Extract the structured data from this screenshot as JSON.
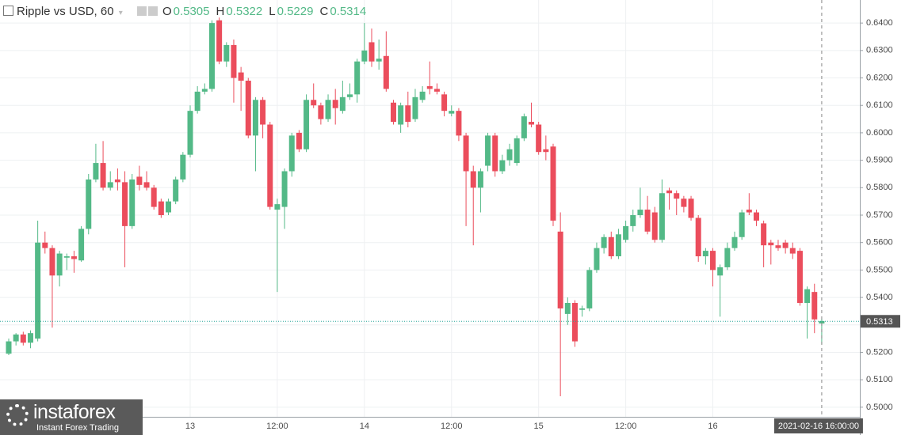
{
  "chart_data": {
    "type": "candlestick",
    "title": "Ripple vs USD, 60",
    "ohlc_labels": [
      "O",
      "H",
      "L",
      "C"
    ],
    "up_color": "#53b987",
    "down_color": "#eb4d5c",
    "grid": true,
    "ylim": [
      0.4965,
      0.6484
    ],
    "yticks": [
      {
        "value": 0.5,
        "label": "0.5000"
      },
      {
        "value": 0.51,
        "label": "0.5100"
      },
      {
        "value": 0.52,
        "label": "0.5200"
      },
      {
        "value": 0.53,
        "label": "0.5300"
      },
      {
        "value": 0.54,
        "label": "0.5400"
      },
      {
        "value": 0.55,
        "label": "0.5500"
      },
      {
        "value": 0.56,
        "label": "0.5600"
      },
      {
        "value": 0.57,
        "label": "0.5700"
      },
      {
        "value": 0.58,
        "label": "0.5800"
      },
      {
        "value": 0.59,
        "label": "0.5900"
      },
      {
        "value": 0.6,
        "label": "0.6000"
      },
      {
        "value": 0.61,
        "label": "0.6100"
      },
      {
        "value": 0.62,
        "label": "0.6200"
      },
      {
        "value": 0.63,
        "label": "0.6300"
      },
      {
        "value": 0.64,
        "label": "0.6400"
      }
    ],
    "last_price": 0.5313,
    "crosshair_label": "2021-02-16 16:00:00",
    "logo": {
      "name": "instaforex",
      "tagline": "Instant Forex Trading"
    },
    "categories": [
      null,
      null,
      null,
      null,
      null,
      null,
      null,
      null,
      null,
      null,
      null,
      null,
      null,
      null,
      null,
      null,
      null,
      null,
      null,
      null,
      null,
      null,
      null,
      null,
      null,
      "13",
      null,
      null,
      null,
      null,
      null,
      null,
      null,
      null,
      null,
      null,
      null,
      "12:00",
      null,
      null,
      null,
      null,
      null,
      null,
      null,
      null,
      null,
      null,
      null,
      "14",
      null,
      null,
      null,
      null,
      null,
      null,
      null,
      null,
      null,
      null,
      null,
      "12:00",
      null,
      null,
      null,
      null,
      null,
      null,
      null,
      null,
      null,
      null,
      null,
      "15",
      null,
      null,
      null,
      null,
      null,
      null,
      null,
      null,
      null,
      null,
      null,
      "12:00",
      null,
      null,
      null,
      null,
      null,
      null,
      null,
      null,
      null,
      null,
      null,
      "16",
      null,
      null,
      null,
      null,
      null,
      null,
      null,
      null,
      null,
      null,
      null,
      null,
      null,
      null,
      null
    ],
    "open": [
      0.5195,
      0.524,
      0.5265,
      0.5235,
      0.525,
      0.56,
      0.558,
      0.548,
      0.5545,
      0.555,
      0.5535,
      0.565,
      0.583,
      0.589,
      0.58,
      0.583,
      0.582,
      0.566,
      0.584,
      0.582,
      0.58,
      0.575,
      0.571,
      0.575,
      0.583,
      0.592,
      0.608,
      0.615,
      0.616,
      0.641,
      0.626,
      0.632,
      0.622,
      0.619,
      0.599,
      0.612,
      0.603,
      0.572,
      0.573,
      0.586,
      0.6,
      0.594,
      0.612,
      0.61,
      0.605,
      0.612,
      0.608,
      0.613,
      0.614,
      0.626,
      0.633,
      0.626,
      0.628,
      0.611,
      0.603,
      0.61,
      0.605,
      0.612,
      0.617,
      0.616,
      0.614,
      0.607,
      0.608,
      0.599,
      0.586,
      0.58,
      0.588,
      0.599,
      0.586,
      0.59,
      0.589,
      0.598,
      0.604,
      0.603,
      0.594,
      0.595,
      0.564,
      0.534,
      0.538,
      0.5355,
      0.536,
      0.55,
      0.558,
      0.562,
      0.555,
      0.561,
      0.566,
      0.57,
      0.572,
      0.571,
      0.561,
      0.579,
      0.578,
      0.576,
      0.576,
      0.569,
      0.555,
      0.557,
      0.548,
      0.551,
      0.558,
      0.562,
      0.572,
      0.571,
      0.567,
      0.56,
      0.559,
      0.56,
      0.558,
      0.557,
      0.538,
      0.542,
      0.5305
    ],
    "high": [
      0.525,
      0.527,
      0.5275,
      0.528,
      0.568,
      0.564,
      0.559,
      0.557,
      0.556,
      0.557,
      0.566,
      0.585,
      0.596,
      0.597,
      0.586,
      0.587,
      0.586,
      0.585,
      0.588,
      0.586,
      0.581,
      0.576,
      0.576,
      0.584,
      0.593,
      0.61,
      0.617,
      0.618,
      0.641,
      0.642,
      0.633,
      0.634,
      0.624,
      0.62,
      0.613,
      0.613,
      0.604,
      0.576,
      0.587,
      0.6,
      0.601,
      0.614,
      0.618,
      0.611,
      0.614,
      0.616,
      0.619,
      0.618,
      0.627,
      0.64,
      0.638,
      0.634,
      0.637,
      0.612,
      0.611,
      0.615,
      0.616,
      0.617,
      0.626,
      0.618,
      0.615,
      0.61,
      0.609,
      0.6,
      0.588,
      0.587,
      0.6,
      0.6,
      0.592,
      0.596,
      0.599,
      0.607,
      0.611,
      0.604,
      0.599,
      0.596,
      0.571,
      0.54,
      0.539,
      0.537,
      0.551,
      0.56,
      0.563,
      0.564,
      0.565,
      0.568,
      0.572,
      0.58,
      0.577,
      0.573,
      0.583,
      0.58,
      0.579,
      0.577,
      0.577,
      0.57,
      0.558,
      0.558,
      0.552,
      0.56,
      0.564,
      0.572,
      0.578,
      0.572,
      0.568,
      0.561,
      0.561,
      0.561,
      0.56,
      0.558,
      0.544,
      0.545,
      0.5322
    ],
    "low": [
      0.519,
      0.5225,
      0.5225,
      0.5215,
      0.524,
      0.556,
      0.529,
      0.544,
      0.55,
      0.549,
      0.553,
      0.563,
      0.582,
      0.579,
      0.579,
      0.579,
      0.551,
      0.565,
      0.579,
      0.579,
      0.572,
      0.569,
      0.57,
      0.574,
      0.582,
      0.591,
      0.607,
      0.614,
      0.615,
      0.625,
      0.624,
      0.611,
      0.608,
      0.598,
      0.586,
      0.598,
      0.572,
      0.542,
      0.565,
      0.584,
      0.593,
      0.593,
      0.609,
      0.603,
      0.604,
      0.603,
      0.607,
      0.612,
      0.611,
      0.625,
      0.624,
      0.623,
      0.615,
      0.603,
      0.6,
      0.602,
      0.604,
      0.611,
      0.614,
      0.614,
      0.606,
      0.606,
      0.597,
      0.566,
      0.559,
      0.571,
      0.586,
      0.584,
      0.585,
      0.588,
      0.588,
      0.597,
      0.602,
      0.592,
      0.59,
      0.566,
      0.504,
      0.53,
      0.522,
      0.533,
      0.535,
      0.549,
      0.556,
      0.554,
      0.554,
      0.56,
      0.564,
      0.569,
      0.563,
      0.56,
      0.56,
      0.572,
      0.57,
      0.571,
      0.568,
      0.553,
      0.552,
      0.544,
      0.533,
      0.55,
      0.557,
      0.561,
      0.57,
      0.566,
      0.551,
      0.552,
      0.557,
      0.556,
      0.554,
      0.537,
      0.525,
      0.527,
      0.5229
    ],
    "close": [
      0.524,
      0.5265,
      0.5235,
      0.527,
      0.56,
      0.558,
      0.548,
      0.556,
      0.555,
      0.554,
      0.565,
      0.583,
      0.589,
      0.58,
      0.582,
      0.582,
      0.566,
      0.583,
      0.581,
      0.58,
      0.573,
      0.57,
      0.575,
      0.583,
      0.592,
      0.608,
      0.615,
      0.616,
      0.64,
      0.626,
      0.632,
      0.62,
      0.619,
      0.599,
      0.612,
      0.603,
      0.573,
      0.574,
      0.586,
      0.599,
      0.594,
      0.612,
      0.61,
      0.605,
      0.612,
      0.609,
      0.613,
      0.614,
      0.626,
      0.63,
      0.626,
      0.627,
      0.616,
      0.604,
      0.61,
      0.604,
      0.613,
      0.615,
      0.616,
      0.615,
      0.608,
      0.608,
      0.599,
      0.586,
      0.58,
      0.586,
      0.599,
      0.586,
      0.59,
      0.594,
      0.598,
      0.606,
      0.603,
      0.593,
      0.593,
      0.568,
      0.536,
      0.538,
      0.524,
      0.536,
      0.55,
      0.558,
      0.562,
      0.555,
      0.563,
      0.566,
      0.57,
      0.572,
      0.564,
      0.561,
      0.578,
      0.578,
      0.576,
      0.573,
      0.569,
      0.555,
      0.557,
      0.55,
      0.551,
      0.558,
      0.562,
      0.571,
      0.571,
      0.568,
      0.559,
      0.559,
      0.558,
      0.558,
      0.556,
      0.538,
      0.543,
      0.532,
      0.5314
    ]
  }
}
